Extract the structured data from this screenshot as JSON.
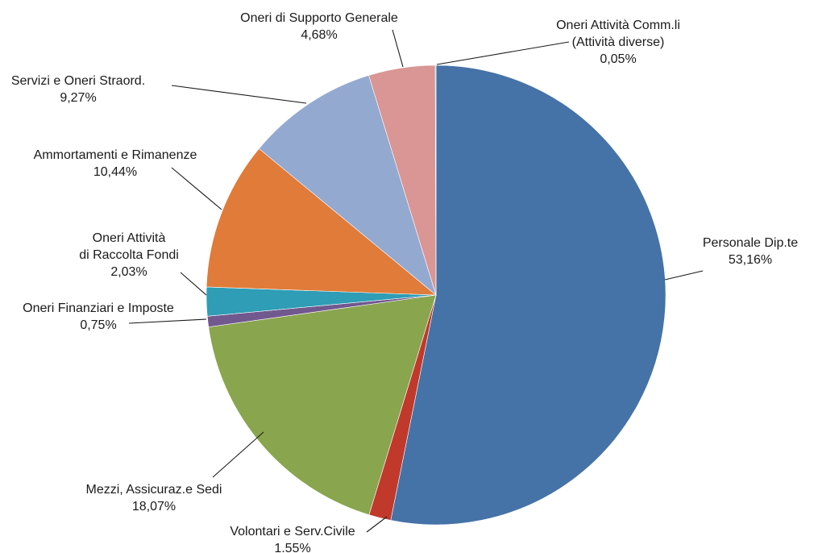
{
  "chart_data": {
    "type": "pie",
    "slices": [
      {
        "name": "Personale Dip.te",
        "value_label": "53,16%",
        "value": 53.16,
        "color": "#4572a7"
      },
      {
        "name": "Volontari e Serv.Civile",
        "value_label": "1.55%",
        "value": 1.55,
        "color": "#c0392b"
      },
      {
        "name": "Mezzi, Assicuraz.e Sedi",
        "value_label": "18,07%",
        "value": 18.07,
        "color": "#89a54e"
      },
      {
        "name": "Oneri Finanziari e Imposte",
        "value_label": "0,75%",
        "value": 0.75,
        "color": "#71588f"
      },
      {
        "name": "Oneri Attività di Raccolta Fondi",
        "value_label": "2,03%",
        "value": 2.03,
        "color": "#2e9db5"
      },
      {
        "name": "Ammortamenti e Rimanenze",
        "value_label": "10,44%",
        "value": 10.44,
        "color": "#e07b39"
      },
      {
        "name": "Servizi e Oneri Straord.",
        "value_label": "9,27%",
        "value": 9.27,
        "color": "#93a9d0"
      },
      {
        "name": "Oneri di Supporto Generale",
        "value_label": "4,68%",
        "value": 4.68,
        "color": "#d99694"
      },
      {
        "name": "Oneri Attività Comm.li (Attività diverse)",
        "value_label": "0,05%",
        "value": 0.05,
        "color": "#4bacc6"
      }
    ]
  },
  "labels": [
    {
      "lines": [
        "Personale Dip.te",
        "53,16%"
      ]
    },
    {
      "lines": [
        "Volontari e Serv.Civile",
        "1.55%"
      ]
    },
    {
      "lines": [
        "Mezzi, Assicuraz.e Sedi",
        "18,07%"
      ]
    },
    {
      "lines": [
        "Oneri Finanziari e Imposte",
        "0,75%"
      ]
    },
    {
      "lines": [
        "Oneri Attività",
        "di Raccolta Fondi",
        "2,03%"
      ]
    },
    {
      "lines": [
        "Ammortamenti e Rimanenze",
        "10,44%"
      ]
    },
    {
      "lines": [
        "Servizi e Oneri Straord.",
        "9,27%"
      ]
    },
    {
      "lines": [
        "Oneri di Supporto Generale",
        "4,68%"
      ]
    },
    {
      "lines": [
        "Oneri Attività Comm.li",
        "(Attività diverse)",
        "0,05%"
      ]
    }
  ]
}
